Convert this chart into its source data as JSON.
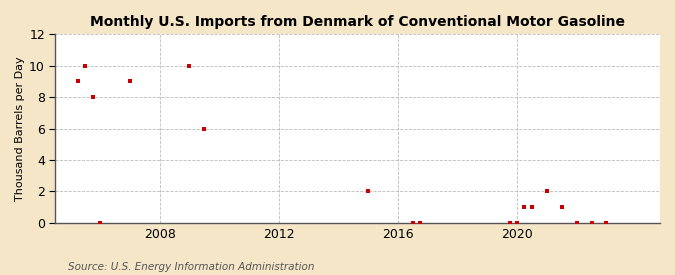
{
  "title": "Monthly U.S. Imports from Denmark of Conventional Motor Gasoline",
  "ylabel": "Thousand Barrels per Day",
  "source": "Source: U.S. Energy Information Administration",
  "fig_bg": "#f5e6c8",
  "plot_bg": "#ffffff",
  "marker_color": "#cc0000",
  "ylim": [
    0,
    12
  ],
  "yticks": [
    0,
    2,
    4,
    6,
    8,
    10,
    12
  ],
  "xlim": [
    2004.5,
    2024.8
  ],
  "xtick_years": [
    2008,
    2012,
    2016,
    2020
  ],
  "data_points": [
    [
      2005.25,
      9
    ],
    [
      2005.5,
      10
    ],
    [
      2005.75,
      8
    ],
    [
      2006.0,
      0
    ],
    [
      2007.0,
      9
    ],
    [
      2009.0,
      10
    ],
    [
      2009.5,
      6
    ],
    [
      2015.0,
      2
    ],
    [
      2016.5,
      0
    ],
    [
      2016.75,
      0
    ],
    [
      2019.75,
      0
    ],
    [
      2020.0,
      0
    ],
    [
      2020.25,
      1
    ],
    [
      2020.5,
      1
    ],
    [
      2021.0,
      2
    ],
    [
      2021.5,
      1
    ],
    [
      2022.0,
      0
    ],
    [
      2022.5,
      0
    ],
    [
      2023.0,
      0
    ]
  ]
}
